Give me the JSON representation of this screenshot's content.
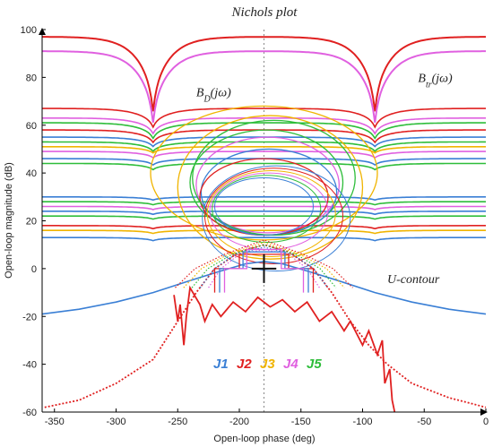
{
  "chart_data": {
    "type": "line",
    "title": "Nichols plot",
    "xlabel": "Open-loop phase (deg)",
    "ylabel": "Open-loop magnitude (dB)",
    "xlim": [
      -360,
      0
    ],
    "ylim": [
      -60,
      100
    ],
    "xticks": [
      -350,
      -300,
      -250,
      -200,
      -150,
      -100,
      -50,
      0
    ],
    "yticks": [
      -60,
      -40,
      -20,
      0,
      20,
      40,
      60,
      80,
      100
    ],
    "grid": "vertical dotted line at -180",
    "annotations": [
      {
        "text": "B_D(jω_k)",
        "x": -235,
        "y": 72
      },
      {
        "text": "B_tr(jω_k)",
        "x": -55,
        "y": 78
      },
      {
        "text": "U-contour",
        "x": -80,
        "y": -6
      }
    ],
    "legend": [
      {
        "label": "J1",
        "color": "#3a7fd5"
      },
      {
        "label": "J2",
        "color": "#e02020"
      },
      {
        "label": "J3",
        "color": "#f0b400"
      },
      {
        "label": "J4",
        "color": "#e060e0"
      },
      {
        "label": "J5",
        "color": "#2ebd3a"
      }
    ],
    "bounds": [
      {
        "color": "#e02020",
        "base": 97,
        "notch_depth": 24,
        "notch_x": [
          -270,
          -90
        ]
      },
      {
        "color": "#e060e0",
        "base": 91,
        "notch_depth": 23,
        "notch_x": [
          -270,
          -90
        ]
      },
      {
        "color": "#e02020",
        "base": 67,
        "notch_depth": 6,
        "notch_x": [
          -270,
          -90
        ]
      },
      {
        "color": "#e060e0",
        "base": 63,
        "notch_depth": 5,
        "notch_x": [
          -270,
          -90
        ]
      },
      {
        "color": "#2ebd3a",
        "base": 61,
        "notch_depth": 5,
        "notch_x": [
          -270,
          -90
        ]
      },
      {
        "color": "#e02020",
        "base": 58,
        "notch_depth": 4,
        "notch_x": [
          -270,
          -90
        ]
      },
      {
        "color": "#3a7fd5",
        "base": 55,
        "notch_depth": 3,
        "notch_x": [
          -270,
          -90
        ]
      },
      {
        "color": "#2ebd3a",
        "base": 53,
        "notch_depth": 3,
        "notch_x": [
          -270,
          -90
        ]
      },
      {
        "color": "#f0b400",
        "base": 51,
        "notch_depth": 2,
        "notch_x": [
          -270,
          -90
        ]
      },
      {
        "color": "#e060e0",
        "base": 49,
        "notch_depth": 2,
        "notch_x": [
          -270,
          -90
        ]
      },
      {
        "color": "#3a7fd5",
        "base": 46,
        "notch_depth": 2,
        "notch_x": [
          -270,
          -90
        ]
      },
      {
        "color": "#2ebd3a",
        "base": 44,
        "notch_depth": 2,
        "notch_x": [
          -270,
          -90
        ]
      },
      {
        "color": "#3a7fd5",
        "base": 30,
        "notch_depth": 1,
        "notch_x": [
          -270,
          -90
        ]
      },
      {
        "color": "#2ebd3a",
        "base": 28,
        "notch_depth": 1,
        "notch_x": [
          -270,
          -90
        ]
      },
      {
        "color": "#e060e0",
        "base": 26,
        "notch_depth": 1,
        "notch_x": [
          -270,
          -90
        ]
      },
      {
        "color": "#3a7fd5",
        "base": 24,
        "notch_depth": 1,
        "notch_x": [
          -270,
          -90
        ]
      },
      {
        "color": "#2ebd3a",
        "base": 22,
        "notch_depth": 1,
        "notch_x": [
          -270,
          -90
        ]
      },
      {
        "color": "#e02020",
        "base": 18,
        "notch_depth": 1,
        "notch_x": [
          -270,
          -90
        ]
      },
      {
        "color": "#f0b400",
        "base": 16,
        "notch_depth": 1,
        "notch_x": [
          -270,
          -90
        ]
      },
      {
        "color": "#3a7fd5",
        "base": 13,
        "notch_depth": 1,
        "notch_x": [
          -270,
          -90
        ]
      }
    ],
    "u_contour": {
      "color": "#3a7fd5",
      "points": [
        [
          -360,
          -19
        ],
        [
          -330,
          -17
        ],
        [
          -300,
          -14
        ],
        [
          -270,
          -10
        ],
        [
          -240,
          -5
        ],
        [
          -215,
          -1
        ],
        [
          -195,
          2
        ],
        [
          -180,
          3
        ],
        [
          -165,
          2
        ],
        [
          -145,
          -1
        ],
        [
          -120,
          -5
        ],
        [
          -90,
          -10
        ],
        [
          -60,
          -14
        ],
        [
          -30,
          -17
        ],
        [
          0,
          -19
        ]
      ]
    },
    "rings": [
      {
        "color": "#f0b400",
        "cx": -175,
        "cy": 34,
        "rx": 75,
        "ry": 30
      },
      {
        "color": "#2ebd3a",
        "cx": -178,
        "cy": 36,
        "rx": 62,
        "ry": 22
      },
      {
        "color": "#e060e0",
        "cx": -177,
        "cy": 35,
        "rx": 58,
        "ry": 20
      },
      {
        "color": "#3a7fd5",
        "cx": -176,
        "cy": 32,
        "rx": 55,
        "ry": 18
      },
      {
        "color": "#e02020",
        "cx": -180,
        "cy": 30,
        "rx": 52,
        "ry": 16
      },
      {
        "color": "#f0b400",
        "cx": -180,
        "cy": 40,
        "rx": 92,
        "ry": 28
      },
      {
        "color": "#2ebd3a",
        "cx": -172,
        "cy": 38,
        "rx": 66,
        "ry": 24
      }
    ],
    "dotted_arches": {
      "color": "#e02020",
      "points": [
        [
          -358,
          -58
        ],
        [
          -330,
          -55
        ],
        [
          -300,
          -48
        ],
        [
          -270,
          -38
        ],
        [
          -250,
          -22
        ],
        [
          -235,
          -10
        ],
        [
          -220,
          0
        ],
        [
          -200,
          7
        ],
        [
          -180,
          10
        ],
        [
          -160,
          7
        ],
        [
          -140,
          0
        ],
        [
          -125,
          -10
        ],
        [
          -110,
          -22
        ],
        [
          -95,
          -32
        ],
        [
          -80,
          -40
        ],
        [
          -60,
          -48
        ],
        [
          -30,
          -54
        ],
        [
          0,
          -58
        ]
      ]
    },
    "j2_jagged": {
      "color": "#e02020",
      "points": [
        [
          -253,
          -11
        ],
        [
          -250,
          -22
        ],
        [
          -248,
          -15
        ],
        [
          -245,
          -32
        ],
        [
          -243,
          -20
        ],
        [
          -240,
          -8
        ],
        [
          -232,
          -15
        ],
        [
          -228,
          -22
        ],
        [
          -222,
          -15
        ],
        [
          -215,
          -20
        ],
        [
          -205,
          -14
        ],
        [
          -195,
          -18
        ],
        [
          -185,
          -12
        ],
        [
          -175,
          -16
        ],
        [
          -165,
          -13
        ],
        [
          -155,
          -18
        ],
        [
          -145,
          -14
        ],
        [
          -135,
          -22
        ],
        [
          -125,
          -18
        ],
        [
          -115,
          -26
        ],
        [
          -110,
          -22
        ],
        [
          -100,
          -32
        ],
        [
          -95,
          -26
        ],
        [
          -88,
          -36
        ],
        [
          -84,
          -30
        ],
        [
          -82,
          -48
        ],
        [
          -78,
          -42
        ],
        [
          -76,
          -55
        ],
        [
          -74,
          -60
        ]
      ]
    },
    "center_marker": {
      "x": -180,
      "y": 0,
      "color": "#111111"
    }
  }
}
